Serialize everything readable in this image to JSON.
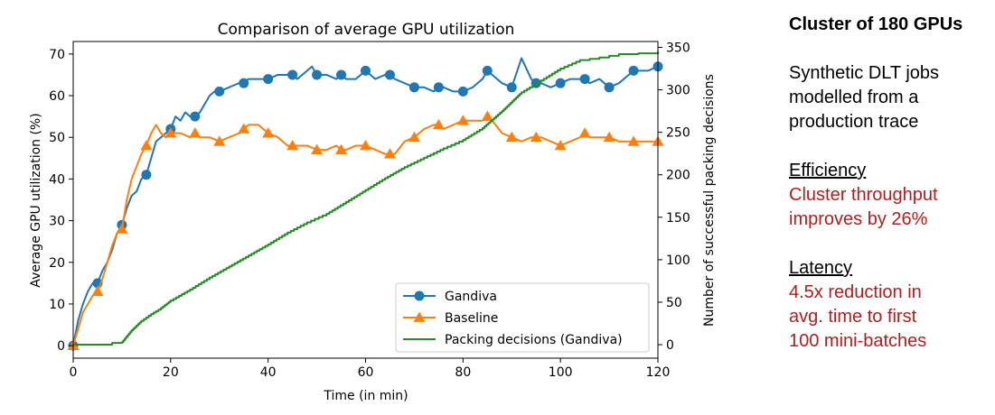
{
  "chart_data": {
    "type": "line",
    "title": "Comparison of average GPU utilization",
    "xlabel": "Time (in min)",
    "ylabel": "Average GPU utilization (%)",
    "y2label": "Number of successful packing decisions",
    "xlim": [
      0,
      120
    ],
    "ylim": [
      -3,
      73
    ],
    "y2lim": [
      -15.9,
      356.9
    ],
    "xticks": [
      0,
      20,
      40,
      60,
      80,
      100,
      120
    ],
    "yticks": [
      0,
      10,
      20,
      30,
      40,
      50,
      60,
      70
    ],
    "y2ticks": [
      0,
      50,
      100,
      150,
      200,
      250,
      300,
      350
    ],
    "legend_position": "lower-right",
    "grid": false,
    "series": [
      {
        "name": "Gandiva",
        "axis": "left",
        "color": "#1f77b4",
        "marker": "circle",
        "x": [
          0,
          1,
          2,
          3,
          4,
          5,
          6,
          7,
          8,
          9,
          10,
          11,
          12,
          13,
          14,
          15,
          16,
          17,
          18,
          19,
          20,
          21,
          22,
          23,
          24,
          25,
          26,
          27,
          28,
          29,
          30,
          32,
          34,
          35,
          36,
          38,
          40,
          42,
          44,
          45,
          46,
          48,
          49,
          50,
          52,
          54,
          55,
          56,
          58,
          60,
          62,
          64,
          65,
          66,
          68,
          70,
          72,
          74,
          75,
          76,
          78,
          80,
          82,
          84,
          85,
          86,
          88,
          90,
          92,
          94,
          95,
          96,
          98,
          100,
          102,
          104,
          105,
          106,
          108,
          110,
          112,
          114,
          115,
          116,
          118,
          120
        ],
        "y": [
          0,
          6,
          10,
          13,
          15,
          15,
          18,
          20,
          23,
          27,
          29,
          33,
          36,
          37,
          40,
          41,
          45,
          49,
          50,
          51,
          52,
          55,
          54,
          56,
          55,
          55,
          56,
          58,
          60,
          61,
          61,
          62,
          63,
          63,
          64,
          64,
          64,
          65,
          65,
          65,
          64,
          66,
          67,
          65,
          65,
          64,
          65,
          64,
          64,
          66,
          64,
          65,
          65,
          64,
          63,
          62,
          62,
          61,
          62,
          62,
          61,
          61,
          62,
          64,
          66,
          65,
          63,
          62,
          69,
          64,
          63,
          63,
          62,
          63,
          64,
          64,
          64,
          63,
          64,
          62,
          63,
          65,
          66,
          66,
          66,
          67
        ],
        "marker_x": [
          0,
          5,
          10,
          15,
          20,
          25,
          30,
          35,
          40,
          45,
          50,
          55,
          60,
          65,
          70,
          75,
          80,
          85,
          90,
          95,
          100,
          105,
          110,
          115,
          120
        ]
      },
      {
        "name": "Baseline",
        "axis": "left",
        "color": "#ff7f0e",
        "marker": "triangle",
        "x": [
          0,
          1,
          2,
          3,
          4,
          5,
          6,
          7,
          8,
          9,
          10,
          11,
          12,
          13,
          14,
          15,
          16,
          17,
          18,
          19,
          20,
          22,
          24,
          25,
          26,
          28,
          30,
          32,
          34,
          35,
          36,
          37,
          38,
          40,
          42,
          44,
          45,
          46,
          48,
          50,
          52,
          54,
          55,
          56,
          58,
          60,
          62,
          64,
          65,
          66,
          68,
          70,
          72,
          74,
          75,
          76,
          78,
          80,
          82,
          84,
          85,
          86,
          88,
          90,
          92,
          94,
          95,
          96,
          98,
          100,
          102,
          104,
          105,
          106,
          108,
          110,
          112,
          114,
          115,
          116,
          118,
          120
        ],
        "y": [
          0,
          4,
          8,
          10,
          12,
          13,
          16,
          20,
          24,
          27,
          28,
          35,
          40,
          43,
          46,
          48,
          51,
          53,
          51,
          50,
          51,
          51,
          50,
          51,
          50,
          50,
          49,
          50,
          51,
          52,
          53,
          53,
          53,
          51,
          50,
          48,
          48,
          48,
          48,
          47,
          47,
          48,
          47,
          47,
          48,
          48,
          47,
          46,
          46,
          46,
          49,
          50,
          52,
          53,
          53,
          52,
          53,
          54,
          54,
          54,
          55,
          54,
          51,
          50,
          49,
          50,
          50,
          50,
          49,
          48,
          49,
          50,
          51,
          50,
          50,
          50,
          49,
          49,
          49,
          49,
          49,
          49
        ],
        "marker_x": [
          0,
          5,
          10,
          15,
          20,
          25,
          30,
          35,
          40,
          45,
          50,
          55,
          60,
          65,
          70,
          75,
          80,
          85,
          90,
          95,
          100,
          105,
          110,
          115,
          120
        ]
      },
      {
        "name": "Packing decisions (Gandiva)",
        "axis": "right",
        "color": "#2a8a2a",
        "marker": "none",
        "step": true,
        "x": [
          0,
          5,
          8,
          10,
          12,
          14,
          16,
          18,
          20,
          24,
          28,
          32,
          36,
          40,
          44,
          48,
          52,
          56,
          60,
          64,
          68,
          72,
          76,
          80,
          84,
          88,
          92,
          96,
          100,
          104,
          108,
          112,
          116,
          120
        ],
        "y": [
          0,
          0,
          2,
          3,
          17,
          28,
          36,
          43,
          52,
          65,
          79,
          92,
          105,
          118,
          132,
          144,
          154,
          168,
          182,
          196,
          209,
          220,
          231,
          241,
          255,
          275,
          297,
          311,
          325,
          335,
          338,
          342,
          343,
          345
        ]
      }
    ]
  },
  "side_panel": {
    "heading": "Cluster of 180 GPUs",
    "description": "Synthetic DLT jobs\nmodelled from a\nproduction trace",
    "efficiency_title": "Efficiency",
    "efficiency_text": "Cluster throughput\nimproves by 26%",
    "latency_title": "Latency",
    "latency_text": "4.5x reduction in\navg. time to first\n100 mini-batches",
    "accent_color": "#b01e1e"
  }
}
